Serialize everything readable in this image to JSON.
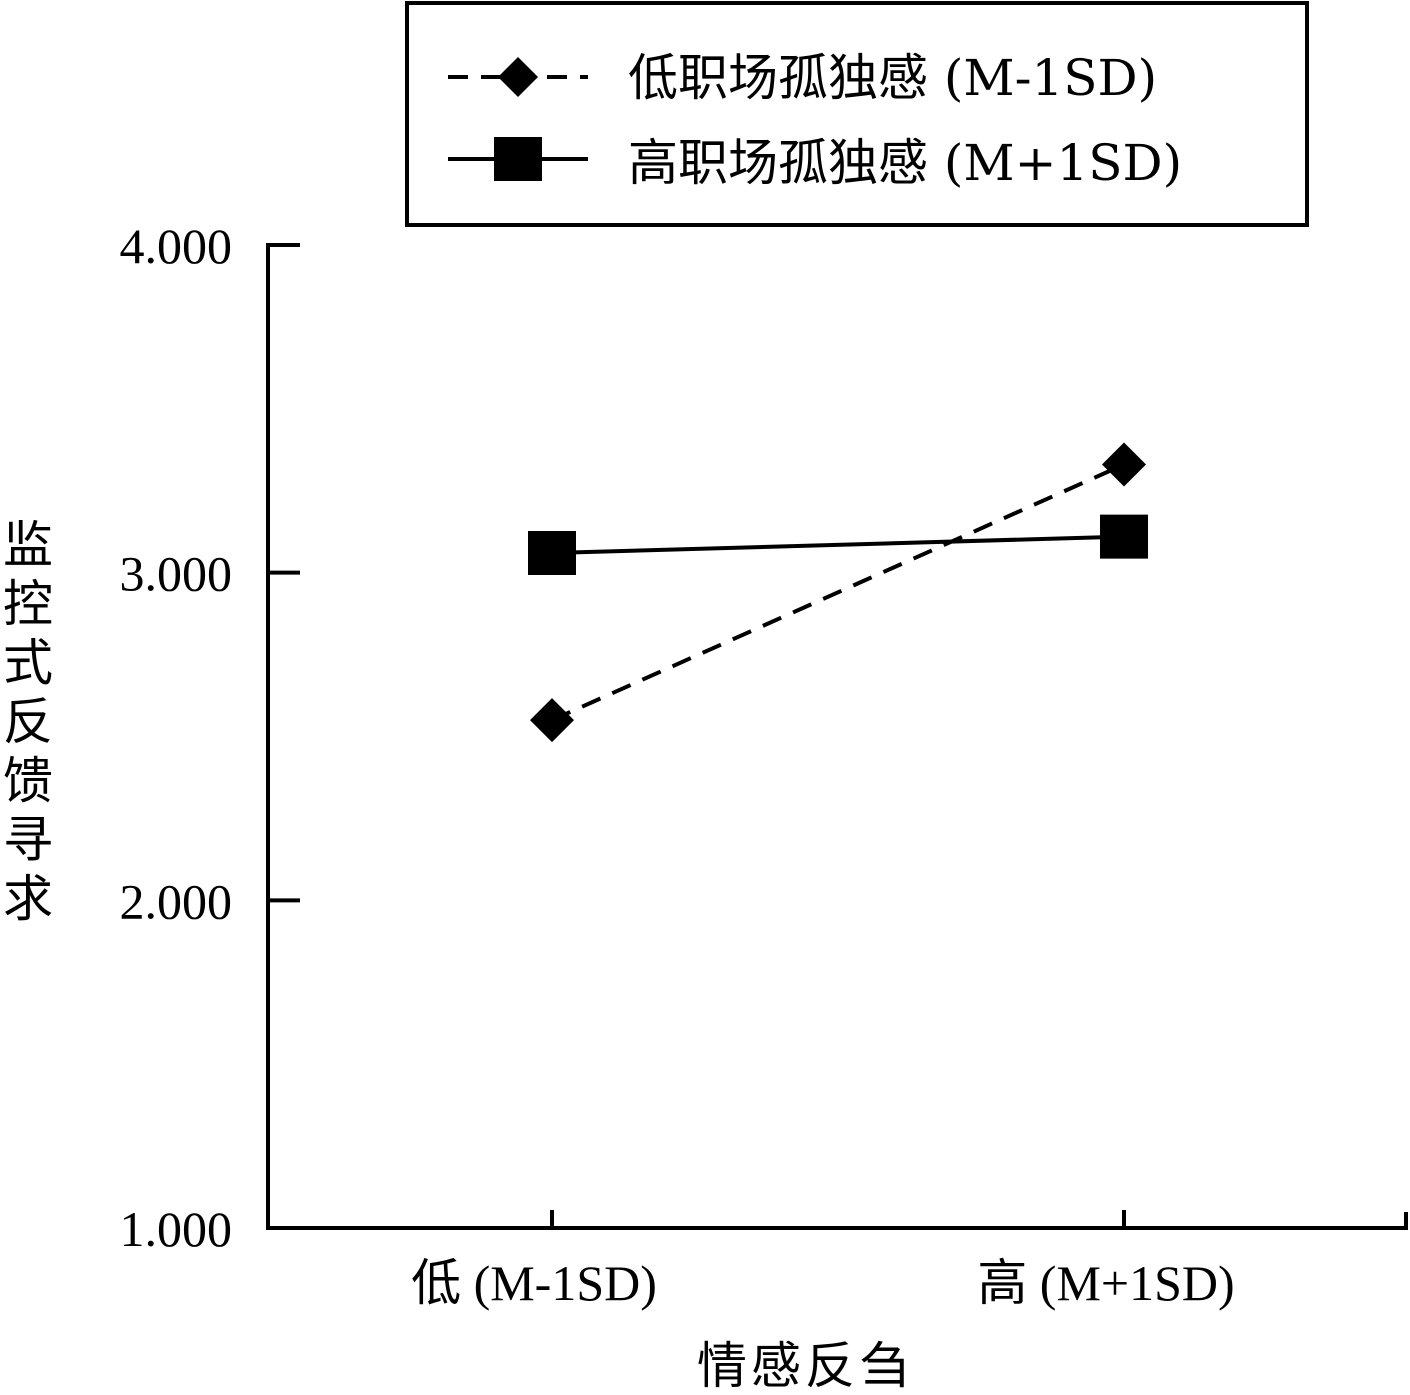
{
  "chart_data": {
    "type": "line",
    "title": "",
    "xlabel": "情感反刍",
    "ylabel": "监控式反馈寻求",
    "categories": [
      "低 (M-1SD)",
      "高 (M+1SD)"
    ],
    "y_ticks": [
      "4.000",
      "3.000",
      "2.000",
      "1.000"
    ],
    "ylim": [
      1.0,
      4.0
    ],
    "grid": false,
    "legend_position": "top",
    "series": [
      {
        "name": "低职场孤独感 (M-1SD)",
        "values": [
          2.55,
          3.33
        ],
        "line_style": "dashed",
        "marker": "diamond",
        "color": "#000000"
      },
      {
        "name": "高职场孤独感 (M+1SD)",
        "values": [
          3.06,
          3.11
        ],
        "line_style": "solid",
        "marker": "square",
        "color": "#000000"
      }
    ]
  }
}
